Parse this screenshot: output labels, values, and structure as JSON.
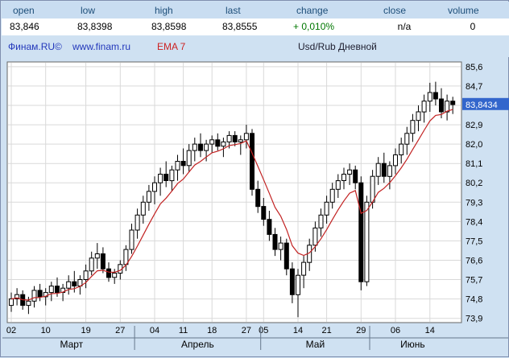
{
  "stats": {
    "columns": [
      {
        "label": "open",
        "value": "83,846"
      },
      {
        "label": "low",
        "value": "83,8398"
      },
      {
        "label": "high",
        "value": "83,8598"
      },
      {
        "label": "last",
        "value": "83,8555"
      },
      {
        "label": "change",
        "value": "+ 0,010%"
      },
      {
        "label": "close",
        "value": "n/a"
      },
      {
        "label": "volume",
        "value": "0"
      }
    ]
  },
  "header": {
    "brand": "Финам.RU©",
    "site": "www.finam.ru",
    "indicator": "EMA 7",
    "title": "Usd/Rub Дневной"
  },
  "colors": {
    "background": "#cfe1f2",
    "plot_bg": "#ffffff",
    "grid": "#d9d9d9",
    "plot_border": "#666666",
    "candle": "#000000",
    "ema": "#c22222",
    "change_positive": "#007700",
    "price_label_bg": "#3366cc",
    "price_label_text": "#ffffff",
    "axis_text": "#000000",
    "separator": "#66788c"
  },
  "chart_data": {
    "type": "candlestick",
    "symbol": "Usd/Rub",
    "timeframe": "Дневной",
    "title": "Usd/Rub Дневной",
    "indicator": {
      "name": "EMA",
      "period": 7
    },
    "y_axis": {
      "min": 73.9,
      "max": 85.6,
      "tick_step": 0.9
    },
    "last_price": {
      "value": 83.8434,
      "label": "83,8434"
    },
    "y_ticks": [
      {
        "value": 85.6,
        "label": "85,6"
      },
      {
        "value": 84.7,
        "label": "84,7"
      },
      {
        "value": 83.8,
        "label": "83,8"
      },
      {
        "value": 82.9,
        "label": "82,9"
      },
      {
        "value": 82.0,
        "label": "82,0"
      },
      {
        "value": 81.1,
        "label": "81,1"
      },
      {
        "value": 80.2,
        "label": "80,2"
      },
      {
        "value": 79.3,
        "label": "79,3"
      },
      {
        "value": 78.4,
        "label": "78,4"
      },
      {
        "value": 77.5,
        "label": "77,5"
      },
      {
        "value": 76.6,
        "label": "76,6"
      },
      {
        "value": 75.7,
        "label": "75,7"
      },
      {
        "value": 74.8,
        "label": "74,8"
      },
      {
        "value": 73.9,
        "label": "73,9"
      }
    ],
    "x_ticks": [
      {
        "index": 0,
        "label": "02"
      },
      {
        "index": 6,
        "label": "10"
      },
      {
        "index": 13,
        "label": "19"
      },
      {
        "index": 19,
        "label": "27"
      },
      {
        "index": 25,
        "label": "04"
      },
      {
        "index": 30,
        "label": "11"
      },
      {
        "index": 35,
        "label": "18"
      },
      {
        "index": 41,
        "label": "27"
      },
      {
        "index": 44,
        "label": "05"
      },
      {
        "index": 50,
        "label": "14"
      },
      {
        "index": 55,
        "label": "21"
      },
      {
        "index": 61,
        "label": "29"
      },
      {
        "index": 67,
        "label": "06"
      },
      {
        "index": 73,
        "label": "14"
      }
    ],
    "months": [
      {
        "label": "Март",
        "from": 0,
        "to": 21
      },
      {
        "label": "Апрель",
        "from": 22,
        "to": 43
      },
      {
        "label": "Май",
        "from": 44,
        "to": 62
      },
      {
        "label": "Июнь",
        "from": 63,
        "to": 77
      }
    ],
    "candles_format": [
      "open",
      "high",
      "low",
      "close"
    ],
    "candles": [
      [
        74.5,
        75.1,
        74.2,
        74.8
      ],
      [
        74.8,
        75.3,
        74.5,
        75.0
      ],
      [
        75.0,
        75.2,
        74.3,
        74.5
      ],
      [
        74.5,
        74.9,
        74.1,
        74.7
      ],
      [
        74.7,
        75.4,
        74.4,
        75.2
      ],
      [
        75.2,
        75.5,
        74.7,
        74.9
      ],
      [
        74.9,
        75.3,
        74.5,
        75.1
      ],
      [
        75.1,
        75.6,
        74.7,
        75.4
      ],
      [
        75.4,
        75.8,
        74.9,
        75.1
      ],
      [
        75.1,
        75.5,
        74.7,
        75.3
      ],
      [
        75.3,
        75.9,
        75.0,
        75.6
      ],
      [
        75.6,
        76.1,
        75.1,
        75.4
      ],
      [
        75.4,
        75.9,
        75.0,
        75.7
      ],
      [
        75.7,
        76.4,
        75.3,
        76.1
      ],
      [
        76.1,
        77.0,
        75.9,
        76.7
      ],
      [
        76.7,
        77.4,
        76.2,
        76.9
      ],
      [
        76.9,
        77.2,
        76.0,
        76.2
      ],
      [
        76.2,
        76.5,
        75.6,
        75.8
      ],
      [
        75.8,
        76.2,
        75.5,
        76.0
      ],
      [
        76.0,
        76.6,
        75.7,
        76.4
      ],
      [
        76.4,
        77.3,
        76.1,
        77.1
      ],
      [
        77.1,
        78.3,
        76.9,
        78.0
      ],
      [
        78.0,
        79.0,
        77.6,
        78.7
      ],
      [
        78.7,
        79.6,
        78.3,
        79.3
      ],
      [
        79.3,
        80.1,
        78.9,
        79.8
      ],
      [
        79.8,
        80.5,
        79.2,
        80.2
      ],
      [
        80.2,
        80.9,
        79.6,
        80.6
      ],
      [
        80.6,
        81.2,
        80.0,
        80.3
      ],
      [
        80.3,
        81.0,
        79.8,
        80.8
      ],
      [
        80.8,
        81.5,
        80.3,
        81.2
      ],
      [
        81.2,
        81.8,
        80.6,
        81.0
      ],
      [
        81.0,
        82.0,
        80.7,
        81.7
      ],
      [
        81.7,
        82.3,
        81.2,
        82.0
      ],
      [
        82.0,
        82.5,
        81.4,
        81.7
      ],
      [
        81.7,
        82.2,
        81.2,
        82.0
      ],
      [
        82.0,
        82.4,
        81.6,
        82.2
      ],
      [
        82.2,
        82.5,
        81.7,
        81.9
      ],
      [
        81.9,
        82.3,
        81.4,
        82.1
      ],
      [
        82.1,
        82.6,
        81.8,
        82.4
      ],
      [
        82.4,
        82.6,
        81.9,
        82.1
      ],
      [
        82.1,
        82.4,
        81.5,
        82.2
      ],
      [
        82.2,
        82.9,
        81.8,
        82.5
      ],
      [
        82.5,
        82.7,
        79.6,
        79.9
      ],
      [
        79.9,
        80.3,
        78.8,
        79.1
      ],
      [
        79.1,
        79.5,
        78.2,
        78.5
      ],
      [
        78.5,
        78.9,
        77.5,
        77.8
      ],
      [
        77.8,
        78.1,
        76.8,
        77.1
      ],
      [
        77.1,
        77.7,
        76.6,
        77.4
      ],
      [
        77.4,
        77.6,
        75.9,
        76.2
      ],
      [
        76.2,
        76.5,
        74.6,
        75.0
      ],
      [
        75.0,
        76.2,
        73.95,
        75.9
      ],
      [
        75.9,
        76.8,
        75.3,
        76.5
      ],
      [
        76.5,
        77.6,
        76.1,
        77.3
      ],
      [
        77.3,
        78.4,
        77.0,
        78.1
      ],
      [
        78.1,
        79.0,
        77.7,
        78.7
      ],
      [
        78.7,
        79.6,
        78.3,
        79.3
      ],
      [
        79.3,
        80.2,
        79.0,
        79.9
      ],
      [
        79.9,
        80.6,
        79.5,
        80.3
      ],
      [
        80.3,
        80.9,
        79.9,
        80.6
      ],
      [
        80.6,
        81.1,
        80.1,
        80.8
      ],
      [
        80.8,
        81.0,
        79.9,
        80.2
      ],
      [
        80.2,
        80.5,
        75.2,
        75.6
      ],
      [
        75.6,
        79.6,
        75.4,
        79.3
      ],
      [
        79.3,
        80.8,
        79.0,
        80.5
      ],
      [
        80.5,
        81.4,
        80.1,
        81.1
      ],
      [
        81.1,
        81.6,
        80.2,
        80.5
      ],
      [
        80.5,
        81.2,
        79.9,
        81.0
      ],
      [
        81.0,
        81.8,
        80.6,
        81.5
      ],
      [
        81.5,
        82.3,
        81.1,
        82.0
      ],
      [
        82.0,
        82.8,
        81.5,
        82.5
      ],
      [
        82.5,
        83.4,
        82.1,
        83.1
      ],
      [
        83.1,
        83.8,
        82.6,
        83.5
      ],
      [
        83.5,
        84.3,
        83.0,
        84.0
      ],
      [
        84.0,
        84.85,
        83.5,
        84.4
      ],
      [
        84.4,
        84.9,
        83.8,
        84.1
      ],
      [
        84.1,
        84.6,
        83.2,
        83.5
      ],
      [
        83.5,
        84.3,
        83.1,
        84.0
      ],
      [
        84.0,
        84.2,
        83.4,
        83.84
      ]
    ]
  }
}
